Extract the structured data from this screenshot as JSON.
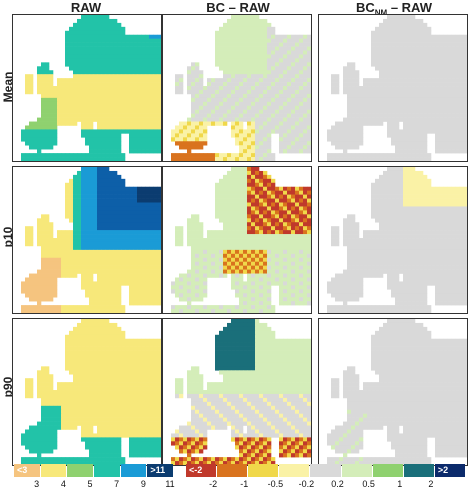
{
  "columns": [
    {
      "main": "RAW",
      "sub": "",
      "tail": ""
    },
    {
      "main": "BC – RAW",
      "sub": "",
      "tail": ""
    },
    {
      "main": "BC",
      "sub": "NM",
      "tail": " – RAW"
    }
  ],
  "rows": [
    "Mean",
    "p10",
    "p90"
  ],
  "colors": {
    "sea": "#ffffff",
    "land_grey": "#d9d9d9",
    "raw": [
      "#f5c47f",
      "#f7e87a",
      "#8fd16f",
      "#22c3a8",
      "#1a9bd6",
      "#0d5fa8",
      "#0b3c70"
    ],
    "diff": [
      "#c0392b",
      "#d9731e",
      "#f0d84a",
      "#faf2a6",
      "#d9d9d9",
      "#d4edb9",
      "#8fd16f",
      "#1a6f7a",
      "#0b2a6b"
    ]
  },
  "legend_raw": {
    "boxes": [
      {
        "text": "<3",
        "color": "#f5c47f"
      },
      {
        "text": "",
        "color": "#f7e87a"
      },
      {
        "text": "",
        "color": "#8fd16f"
      },
      {
        "text": "",
        "color": "#22c3a8"
      },
      {
        "text": "",
        "color": "#1a9bd6"
      },
      {
        "text": ">11",
        "color": "#0b3c70"
      }
    ],
    "ticks": [
      "3",
      "4",
      "5",
      "7",
      "9",
      "11"
    ]
  },
  "legend_diff": {
    "boxes": [
      {
        "text": "<-2",
        "color": "#c0392b"
      },
      {
        "text": "",
        "color": "#d9731e"
      },
      {
        "text": "",
        "color": "#f0d84a"
      },
      {
        "text": "",
        "color": "#faf2a6"
      },
      {
        "text": "",
        "color": "#d9d9d9"
      },
      {
        "text": "",
        "color": "#d4edb9"
      },
      {
        "text": "",
        "color": "#8fd16f"
      },
      {
        "text": "",
        "color": "#1a6f7a"
      },
      {
        "text": ">2",
        "color": "#0b2a6b"
      }
    ],
    "ticks": [
      "-2",
      "-1",
      "-0.5",
      "-0.2",
      "0.2",
      "0.5",
      "1",
      "2"
    ]
  }
}
